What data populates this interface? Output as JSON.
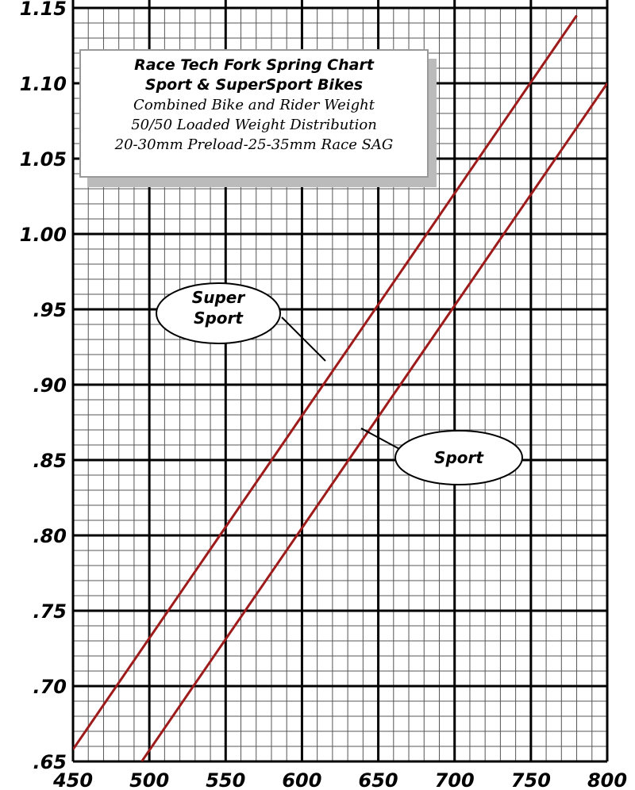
{
  "chart_data": {
    "type": "line",
    "title": "Race Tech Fork Spring Chart",
    "subtitle": "Sport & SuperSport Bikes",
    "annotations": [
      "Combined Bike and Rider Weight",
      "50/50 Loaded Weight Distribution",
      "20-30mm Preload-25-35mm Race SAG"
    ],
    "xlim": [
      450,
      800
    ],
    "xticks": [
      450,
      500,
      550,
      600,
      650,
      700,
      750,
      800
    ],
    "ylim": [
      0.65,
      1.15
    ],
    "yticks": [
      {
        "value": 0.65,
        "label": ".65"
      },
      {
        "value": 0.7,
        "label": ".70"
      },
      {
        "value": 0.75,
        "label": ".75"
      },
      {
        "value": 0.8,
        "label": ".80"
      },
      {
        "value": 0.85,
        "label": ".85"
      },
      {
        "value": 0.9,
        "label": ".90"
      },
      {
        "value": 0.95,
        "label": ".95"
      },
      {
        "value": 1.0,
        "label": "1.00"
      },
      {
        "value": 1.05,
        "label": "1.05"
      },
      {
        "value": 1.1,
        "label": "1.10"
      },
      1.15
    ],
    "grid": true,
    "series": [
      {
        "name": "Super Sport",
        "color": "#9e1b1b",
        "x": [
          450,
          780
        ],
        "values": [
          0.658,
          1.145
        ]
      },
      {
        "name": "Sport",
        "color": "#9e1b1b",
        "x": [
          495,
          800
        ],
        "values": [
          0.65,
          1.1
        ]
      }
    ]
  }
}
